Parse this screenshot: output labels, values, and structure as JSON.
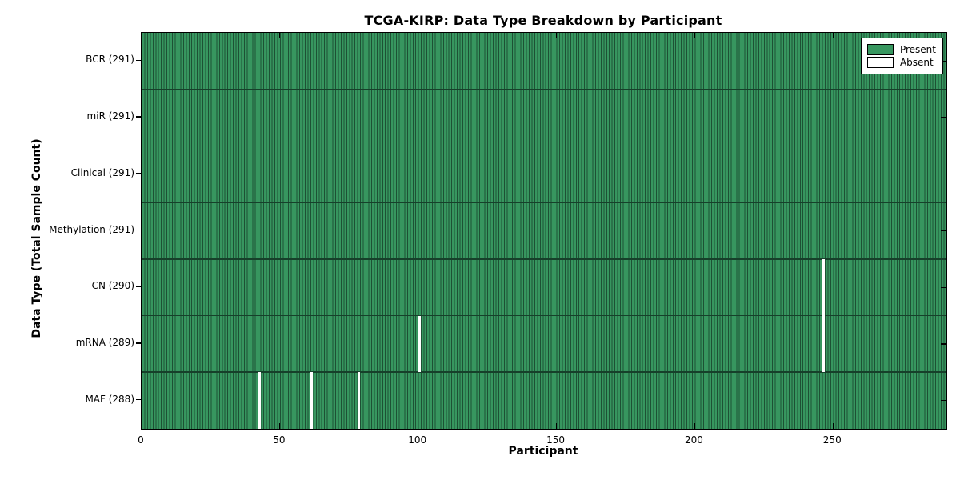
{
  "chart_data": {
    "type": "heatmap",
    "title": "TCGA-KIRP: Data Type Breakdown by Participant",
    "xlabel": "Participant",
    "ylabel": "Data Type (Total Sample Count)",
    "x_range": [
      0,
      291
    ],
    "x_ticks": [
      "0",
      "50",
      "100",
      "150",
      "200",
      "250"
    ],
    "x_tick_values": [
      0,
      50,
      100,
      150,
      200,
      250
    ],
    "n_participants": 291,
    "grid": "row separators only, no vertical gridlines",
    "rows": [
      {
        "label": "BCR (291)",
        "data_type": "BCR",
        "total_samples": 291,
        "absent_participants": []
      },
      {
        "label": "miR (291)",
        "data_type": "miR",
        "total_samples": 291,
        "absent_participants": []
      },
      {
        "label": "Clinical (291)",
        "data_type": "Clinical",
        "total_samples": 291,
        "absent_participants": []
      },
      {
        "label": "Methylation (291)",
        "data_type": "Methylation",
        "total_samples": 291,
        "absent_participants": []
      },
      {
        "label": "CN (290)",
        "data_type": "CN",
        "total_samples": 290,
        "absent_participants": [
          246
        ]
      },
      {
        "label": "mRNA (289)",
        "data_type": "mRNA",
        "total_samples": 289,
        "absent_participants": [
          100,
          246
        ]
      },
      {
        "label": "MAF (288)",
        "data_type": "MAF",
        "total_samples": 288,
        "absent_participants": [
          42,
          61,
          78
        ]
      }
    ],
    "legend": {
      "position": "upper right",
      "entries": [
        {
          "label": "Present",
          "color": "#37965f"
        },
        {
          "label": "Absent",
          "color": "#ffffff"
        }
      ]
    },
    "colors": {
      "present_fill": "#37965f",
      "present_edge": "#1d5134",
      "absent": "#ffffff",
      "row_line": "#16402a",
      "spine": "#000000",
      "background": "#ffffff"
    }
  }
}
